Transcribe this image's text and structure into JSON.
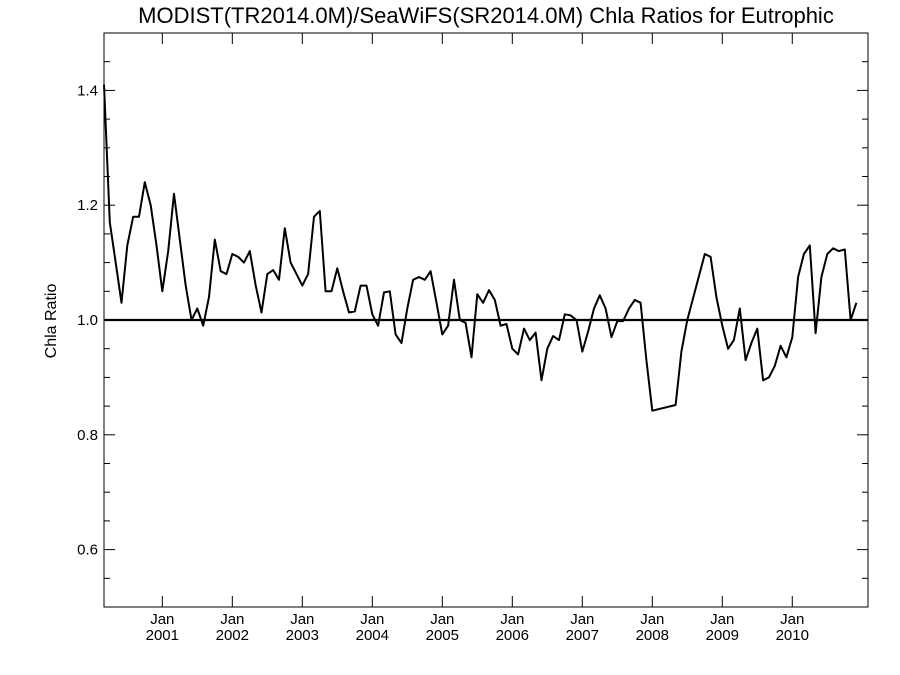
{
  "chart_data": {
    "type": "line",
    "title": "MODIST(TR2014.0M)/SeaWiFS(SR2014.0M)  Chla Ratios for Eutrophic",
    "xlabel": "",
    "ylabel": "Chla Ratio",
    "ylim": [
      0.5,
      1.5
    ],
    "xlim": [
      "2000-03-01",
      "2010-12-31"
    ],
    "y_ticks": [
      0.6,
      0.8,
      1.0,
      1.2,
      1.4
    ],
    "y_tick_labels": [
      "0.6",
      "0.8",
      "1.0",
      "1.2",
      "1.4"
    ],
    "x_ticks": [
      {
        "month": "Jan",
        "year": "2001",
        "date": "2001-01-01"
      },
      {
        "month": "Jan",
        "year": "2002",
        "date": "2002-01-01"
      },
      {
        "month": "Jan",
        "year": "2003",
        "date": "2003-01-01"
      },
      {
        "month": "Jan",
        "year": "2004",
        "date": "2004-01-01"
      },
      {
        "month": "Jan",
        "year": "2005",
        "date": "2005-01-01"
      },
      {
        "month": "Jan",
        "year": "2006",
        "date": "2006-01-01"
      },
      {
        "month": "Jan",
        "year": "2007",
        "date": "2007-01-01"
      },
      {
        "month": "Jan",
        "year": "2008",
        "date": "2008-01-01"
      },
      {
        "month": "Jan",
        "year": "2009",
        "date": "2009-01-01"
      },
      {
        "month": "Jan",
        "year": "2010",
        "date": "2010-01-01"
      }
    ],
    "reference_line": 1.0,
    "grid": false,
    "series": [
      {
        "x": [
          "2000-03",
          "2000-04",
          "2000-05",
          "2000-06",
          "2000-07",
          "2000-08",
          "2000-09",
          "2000-10",
          "2000-11",
          "2000-12",
          "2001-01",
          "2001-02",
          "2001-03",
          "2001-04",
          "2001-05",
          "2001-06",
          "2001-07",
          "2001-08",
          "2001-09",
          "2001-10",
          "2001-11",
          "2001-12",
          "2002-01",
          "2002-02",
          "2002-03",
          "2002-04",
          "2002-05",
          "2002-06",
          "2002-07",
          "2002-08",
          "2002-09",
          "2002-10",
          "2002-11",
          "2002-12",
          "2003-01",
          "2003-02",
          "2003-03",
          "2003-04",
          "2003-05",
          "2003-06",
          "2003-07",
          "2003-08",
          "2003-09",
          "2003-10",
          "2003-11",
          "2003-12",
          "2004-01",
          "2004-02",
          "2004-03",
          "2004-04",
          "2004-05",
          "2004-06",
          "2004-07",
          "2004-08",
          "2004-09",
          "2004-10",
          "2004-11",
          "2004-12",
          "2005-01",
          "2005-02",
          "2005-03",
          "2005-04",
          "2005-05",
          "2005-06",
          "2005-07",
          "2005-08",
          "2005-09",
          "2005-10",
          "2005-11",
          "2005-12",
          "2006-01",
          "2006-02",
          "2006-03",
          "2006-04",
          "2006-05",
          "2006-06",
          "2006-07",
          "2006-08",
          "2006-09",
          "2006-10",
          "2006-11",
          "2006-12",
          "2007-01",
          "2007-02",
          "2007-03",
          "2007-04",
          "2007-05",
          "2007-06",
          "2007-07",
          "2007-08",
          "2007-09",
          "2007-10",
          "2007-11",
          "2007-12",
          "2008-01",
          "2008-05",
          "2008-06",
          "2008-07",
          "2008-10",
          "2008-11",
          "2008-12",
          "2009-01",
          "2009-02",
          "2009-03",
          "2009-04",
          "2009-05",
          "2009-06",
          "2009-07",
          "2009-08",
          "2009-09",
          "2009-10",
          "2009-11",
          "2009-12",
          "2010-01",
          "2010-02",
          "2010-03",
          "2010-04",
          "2010-05",
          "2010-06",
          "2010-07",
          "2010-08",
          "2010-09",
          "2010-10",
          "2010-11",
          "2010-12"
        ],
        "values": [
          1.41,
          1.17,
          1.1,
          1.03,
          1.13,
          1.18,
          1.18,
          1.24,
          1.2,
          1.13,
          1.05,
          1.12,
          1.22,
          1.14,
          1.06,
          1.0,
          1.02,
          0.99,
          1.04,
          1.14,
          1.085,
          1.08,
          1.115,
          1.11,
          1.1,
          1.12,
          1.06,
          1.013,
          1.08,
          1.087,
          1.07,
          1.16,
          1.1,
          1.08,
          1.06,
          1.08,
          1.18,
          1.19,
          1.05,
          1.05,
          1.09,
          1.05,
          1.013,
          1.015,
          1.06,
          1.06,
          1.01,
          0.99,
          1.048,
          1.05,
          0.975,
          0.96,
          1.02,
          1.07,
          1.075,
          1.07,
          1.085,
          1.03,
          0.975,
          0.99,
          1.07,
          1.0,
          0.995,
          0.935,
          1.045,
          1.03,
          1.052,
          1.035,
          0.99,
          0.993,
          0.95,
          0.94,
          0.985,
          0.965,
          0.978,
          0.895,
          0.95,
          0.972,
          0.965,
          1.01,
          1.008,
          1.0,
          0.945,
          0.98,
          1.02,
          1.043,
          1.02,
          0.97,
          0.998,
          0.998,
          1.02,
          1.035,
          1.03,
          0.93,
          0.842,
          0.852,
          0.945,
          1.0,
          1.115,
          1.11,
          1.04,
          0.99,
          0.95,
          0.965,
          1.02,
          0.93,
          0.96,
          0.985,
          0.895,
          0.9,
          0.92,
          0.955,
          0.935,
          0.97,
          1.075,
          1.115,
          1.13,
          0.977,
          1.075,
          1.115,
          1.125,
          1.12,
          1.123,
          1.0,
          1.03
        ]
      }
    ]
  }
}
